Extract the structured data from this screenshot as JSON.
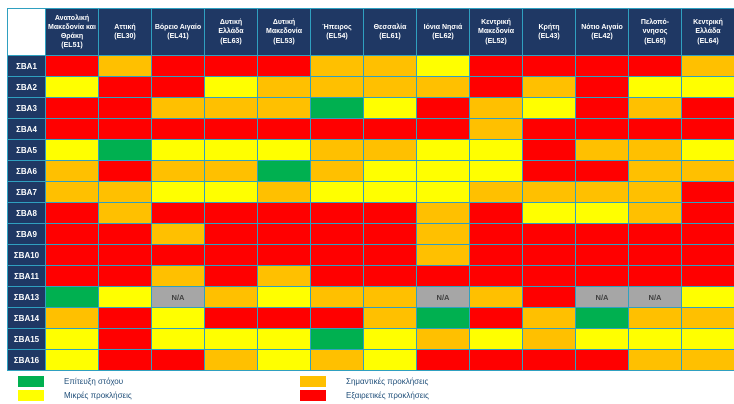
{
  "chart_data": {
    "type": "heatmap",
    "na_text": "N/A",
    "columns": [
      {
        "region": "Ανατολική Μακεδονία και Θράκη",
        "code": "(EL51)"
      },
      {
        "region": "Αττική",
        "code": "(EL30)"
      },
      {
        "region": "Βόρειο Αιγαίο",
        "code": "(EL41)"
      },
      {
        "region": "Δυτική Ελλάδα",
        "code": "(EL63)"
      },
      {
        "region": "Δυτική Μακεδονία",
        "code": "(EL53)"
      },
      {
        "region": "Ήπειρος",
        "code": "(EL54)"
      },
      {
        "region": "Θεσσαλία",
        "code": "(EL61)"
      },
      {
        "region": "Ιόνια Νησιά",
        "code": "(EL62)"
      },
      {
        "region": "Κεντρική Μακεδονία",
        "code": "(EL52)"
      },
      {
        "region": "Κρήτη",
        "code": "(EL43)"
      },
      {
        "region": "Νότιο Αιγαίο",
        "code": "(EL42)"
      },
      {
        "region": "Πελοπό-ννησος",
        "code": "(EL65)"
      },
      {
        "region": "Κεντρική Ελλάδα",
        "code": "(EL64)"
      }
    ],
    "rows": [
      "ΣΒΑ1",
      "ΣΒΑ2",
      "ΣΒΑ3",
      "ΣΒΑ4",
      "ΣΒΑ5",
      "ΣΒΑ6",
      "ΣΒΑ7",
      "ΣΒΑ8",
      "ΣΒΑ9",
      "ΣΒΑ10",
      "ΣΒΑ11",
      "ΣΒΑ13",
      "ΣΒΑ14",
      "ΣΒΑ15",
      "ΣΒΑ16"
    ],
    "cells": [
      [
        "red",
        "orange",
        "red",
        "red",
        "red",
        "orange",
        "orange",
        "yellow",
        "red",
        "red",
        "red",
        "red",
        "orange"
      ],
      [
        "yellow",
        "red",
        "red",
        "yellow",
        "orange",
        "orange",
        "orange",
        "orange",
        "red",
        "orange",
        "red",
        "yellow",
        "yellow"
      ],
      [
        "red",
        "red",
        "orange",
        "orange",
        "orange",
        "green",
        "yellow",
        "red",
        "orange",
        "yellow",
        "red",
        "orange",
        "red"
      ],
      [
        "red",
        "red",
        "red",
        "red",
        "red",
        "red",
        "red",
        "red",
        "orange",
        "red",
        "red",
        "red",
        "red"
      ],
      [
        "yellow",
        "green",
        "yellow",
        "yellow",
        "yellow",
        "orange",
        "orange",
        "yellow",
        "yellow",
        "red",
        "orange",
        "orange",
        "yellow"
      ],
      [
        "orange",
        "red",
        "orange",
        "orange",
        "green",
        "orange",
        "yellow",
        "yellow",
        "yellow",
        "red",
        "red",
        "orange",
        "orange"
      ],
      [
        "orange",
        "orange",
        "yellow",
        "yellow",
        "orange",
        "yellow",
        "yellow",
        "yellow",
        "orange",
        "orange",
        "orange",
        "orange",
        "red"
      ],
      [
        "red",
        "orange",
        "red",
        "red",
        "red",
        "red",
        "red",
        "orange",
        "red",
        "yellow",
        "yellow",
        "orange",
        "red"
      ],
      [
        "red",
        "red",
        "orange",
        "red",
        "red",
        "red",
        "red",
        "orange",
        "red",
        "red",
        "red",
        "red",
        "red"
      ],
      [
        "red",
        "red",
        "red",
        "red",
        "red",
        "red",
        "red",
        "orange",
        "red",
        "red",
        "red",
        "red",
        "red"
      ],
      [
        "red",
        "red",
        "orange",
        "red",
        "orange",
        "red",
        "red",
        "red",
        "red",
        "red",
        "red",
        "red",
        "red"
      ],
      [
        "green",
        "yellow",
        "na",
        "orange",
        "yellow",
        "orange",
        "orange",
        "na",
        "orange",
        "red",
        "na",
        "na",
        "yellow"
      ],
      [
        "orange",
        "red",
        "yellow",
        "red",
        "red",
        "red",
        "orange",
        "green",
        "red",
        "orange",
        "green",
        "orange",
        "orange"
      ],
      [
        "yellow",
        "red",
        "yellow",
        "yellow",
        "yellow",
        "green",
        "yellow",
        "orange",
        "yellow",
        "orange",
        "yellow",
        "yellow",
        "yellow"
      ],
      [
        "yellow",
        "red",
        "red",
        "orange",
        "yellow",
        "orange",
        "yellow",
        "red",
        "red",
        "red",
        "red",
        "orange",
        "orange"
      ]
    ]
  },
  "legend": {
    "items": [
      {
        "key": "green",
        "label": "Επίτευξη στόχου"
      },
      {
        "key": "yellow",
        "label": "Μικρές προκλήσεις"
      },
      {
        "key": "orange",
        "label": "Σημαντικές προκλήσεις"
      },
      {
        "key": "red",
        "label": "Εξαιρετικές προκλήσεις"
      }
    ]
  },
  "colors": {
    "green": "#00b050",
    "yellow": "#ffff00",
    "orange": "#ffc000",
    "red": "#ff0000",
    "na": "#a6a6a6",
    "header_bg": "#1f3864",
    "grid": "#2fa0c0"
  }
}
